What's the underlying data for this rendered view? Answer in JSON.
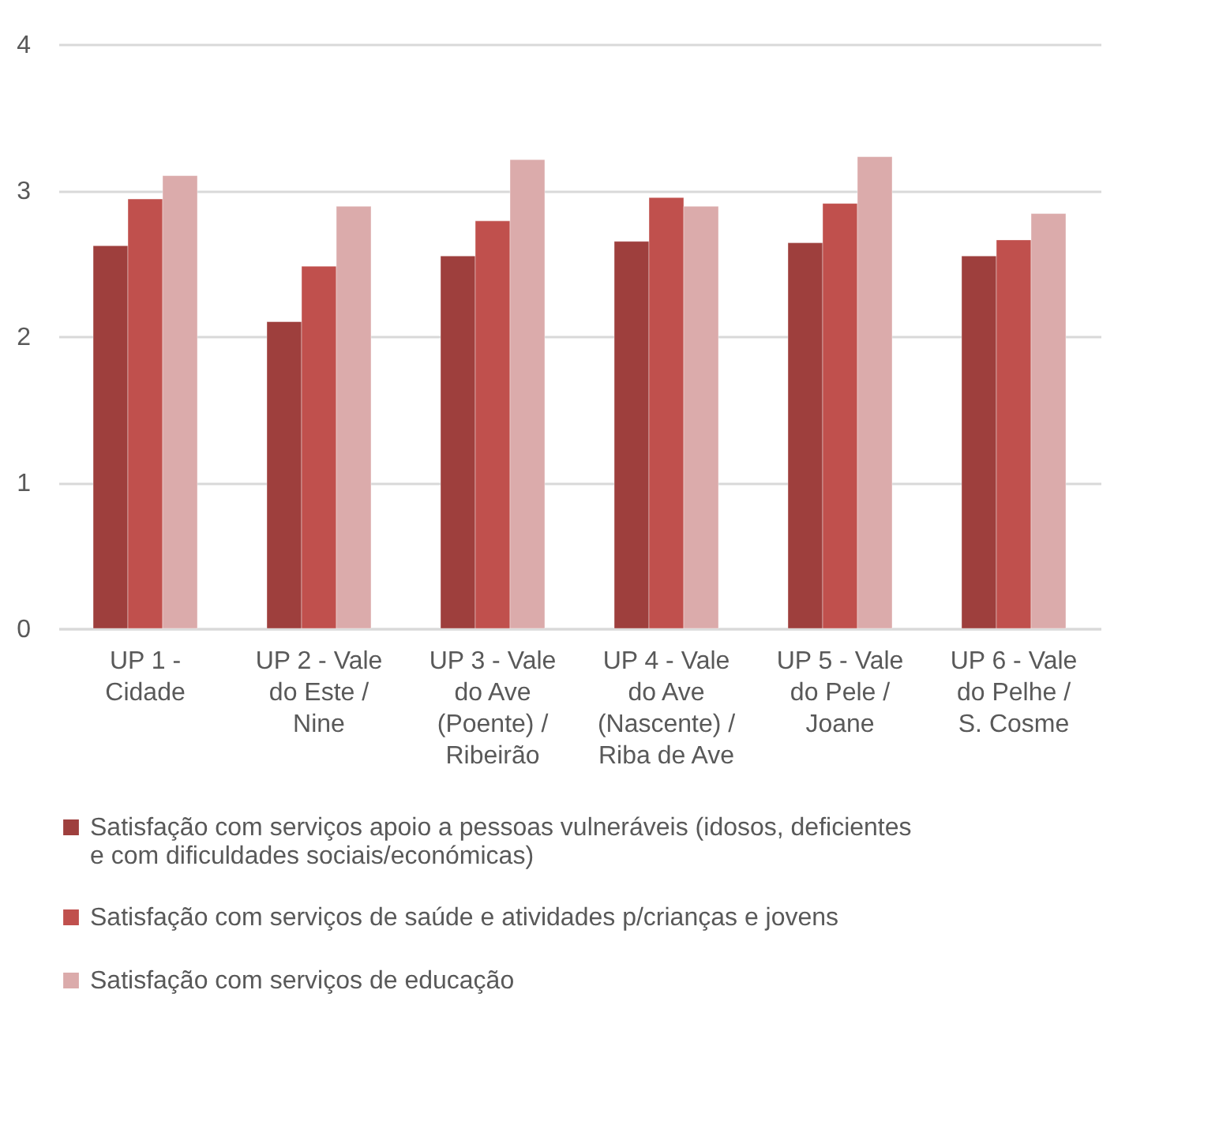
{
  "chart_data": {
    "type": "bar",
    "categories": [
      "UP 1 - Cidade",
      "UP 2 - Vale do Este / Nine",
      "UP 3 - Vale do Ave (Poente) / Ribeirão",
      "UP 4  - Vale do Ave (Nascente) / Riba de Ave",
      "UP 5 - Vale do Pele / Joane",
      "UP 6 - Vale do Pelhe / S. Cosme"
    ],
    "series": [
      {
        "name": "Satisfação com serviços apoio a pessoas vulneráveis (idosos, deficientes e com dificuldades sociais/económicas)",
        "color": "#9e3f3d",
        "values": [
          2.62,
          2.1,
          2.55,
          2.65,
          2.64,
          2.55
        ]
      },
      {
        "name": "Satisfação com serviços de saúde e atividades p/crianças e jovens",
        "color": "#c0504d",
        "values": [
          2.94,
          2.48,
          2.79,
          2.95,
          2.91,
          2.66
        ]
      },
      {
        "name": "Satisfação com serviços de educação",
        "color": "#dbabab",
        "values": [
          3.1,
          2.89,
          3.21,
          2.89,
          3.23,
          2.84
        ]
      }
    ],
    "ylim": [
      0,
      4
    ],
    "yticks": [
      0,
      1,
      2,
      3,
      4
    ],
    "grid": "y",
    "legend": "bottom"
  }
}
